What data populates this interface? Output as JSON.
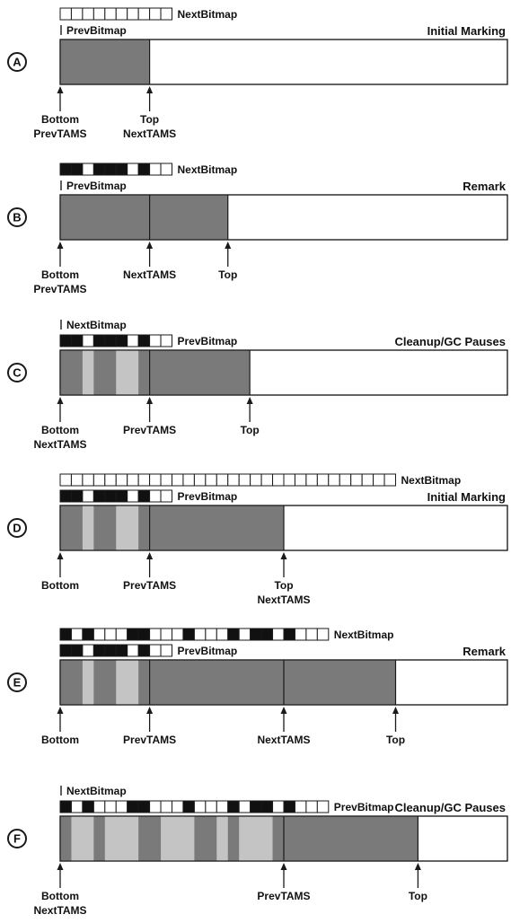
{
  "colors": {
    "region_fill": "#ffffff",
    "used_fill": "#7a7a7a",
    "light_fill": "#c4c4c4",
    "outline": "#1a1a1a",
    "bit_marked": "#111111",
    "bit_clear": "#ffffff"
  },
  "panels": [
    {
      "letter": "A",
      "title": "Initial Marking",
      "bitmaps": [
        {
          "label": "NextBitmap",
          "bits": "0000000000"
        },
        {
          "label": "PrevBitmap",
          "bits": ""
        }
      ],
      "used_fraction": 0.2,
      "dividers": [],
      "light_strips": [],
      "pointers": [
        {
          "lines": [
            "Bottom",
            "PrevTAMS"
          ],
          "at": 0.0
        },
        {
          "lines": [
            "Top",
            "NextTAMS"
          ],
          "at": 0.2
        }
      ]
    },
    {
      "letter": "B",
      "title": "Remark",
      "bitmaps": [
        {
          "label": "NextBitmap",
          "bits": "1101110100"
        },
        {
          "label": "PrevBitmap",
          "bits": ""
        }
      ],
      "used_fraction": 0.375,
      "dividers": [
        0.2
      ],
      "light_strips": [],
      "pointers": [
        {
          "lines": [
            "Bottom",
            "PrevTAMS"
          ],
          "at": 0.0
        },
        {
          "lines": [
            "NextTAMS"
          ],
          "at": 0.2
        },
        {
          "lines": [
            "Top"
          ],
          "at": 0.375
        }
      ]
    },
    {
      "letter": "C",
      "title": "Cleanup/GC Pauses",
      "bitmaps": [
        {
          "label": "NextBitmap",
          "bits": ""
        },
        {
          "label": "PrevBitmap",
          "bits": "1101110100"
        }
      ],
      "used_fraction": 0.424,
      "dividers": [
        0.2
      ],
      "light_strips": [
        [
          0.05,
          0.075
        ],
        [
          0.125,
          0.175
        ]
      ],
      "pointers": [
        {
          "lines": [
            "Bottom",
            "NextTAMS"
          ],
          "at": 0.0
        },
        {
          "lines": [
            "PrevTAMS"
          ],
          "at": 0.2
        },
        {
          "lines": [
            "Top"
          ],
          "at": 0.424
        }
      ]
    },
    {
      "letter": "D",
      "title": "Initial Marking",
      "bitmaps": [
        {
          "label": "NextBitmap",
          "bits": "000000000000000000000000000000"
        },
        {
          "label": "PrevBitmap",
          "bits": "1101110100"
        }
      ],
      "used_fraction": 0.5,
      "dividers": [
        0.2
      ],
      "light_strips": [
        [
          0.05,
          0.075
        ],
        [
          0.125,
          0.175
        ]
      ],
      "pointers": [
        {
          "lines": [
            "Bottom"
          ],
          "at": 0.0
        },
        {
          "lines": [
            "PrevTAMS"
          ],
          "at": 0.2
        },
        {
          "lines": [
            "Top",
            "NextTAMS"
          ],
          "at": 0.5
        }
      ]
    },
    {
      "letter": "E",
      "title": "Remark",
      "bitmaps": [
        {
          "label": "NextBitmap",
          "bits": "101000110001000101101000"
        },
        {
          "label": "PrevBitmap",
          "bits": "1101110100"
        }
      ],
      "used_fraction": 0.75,
      "dividers": [
        0.2,
        0.5
      ],
      "light_strips": [
        [
          0.05,
          0.075
        ],
        [
          0.125,
          0.175
        ]
      ],
      "pointers": [
        {
          "lines": [
            "Bottom"
          ],
          "at": 0.0
        },
        {
          "lines": [
            "PrevTAMS"
          ],
          "at": 0.2
        },
        {
          "lines": [
            "NextTAMS"
          ],
          "at": 0.5
        },
        {
          "lines": [
            "Top"
          ],
          "at": 0.75
        }
      ]
    },
    {
      "letter": "F",
      "title": "Cleanup/GC Pauses",
      "bitmaps": [
        {
          "label": "NextBitmap",
          "bits": ""
        },
        {
          "label": "PrevBitmap",
          "bits": "101000110001000101101000"
        }
      ],
      "used_fraction": 0.8,
      "dividers": [
        0.5
      ],
      "light_strips": [
        [
          0.025,
          0.075
        ],
        [
          0.1,
          0.175
        ],
        [
          0.225,
          0.3
        ],
        [
          0.35,
          0.375
        ],
        [
          0.4,
          0.475
        ]
      ],
      "pointers": [
        {
          "lines": [
            "Bottom",
            "NextTAMS"
          ],
          "at": 0.0
        },
        {
          "lines": [
            "PrevTAMS"
          ],
          "at": 0.5
        },
        {
          "lines": [
            "Top"
          ],
          "at": 0.8
        }
      ]
    }
  ]
}
